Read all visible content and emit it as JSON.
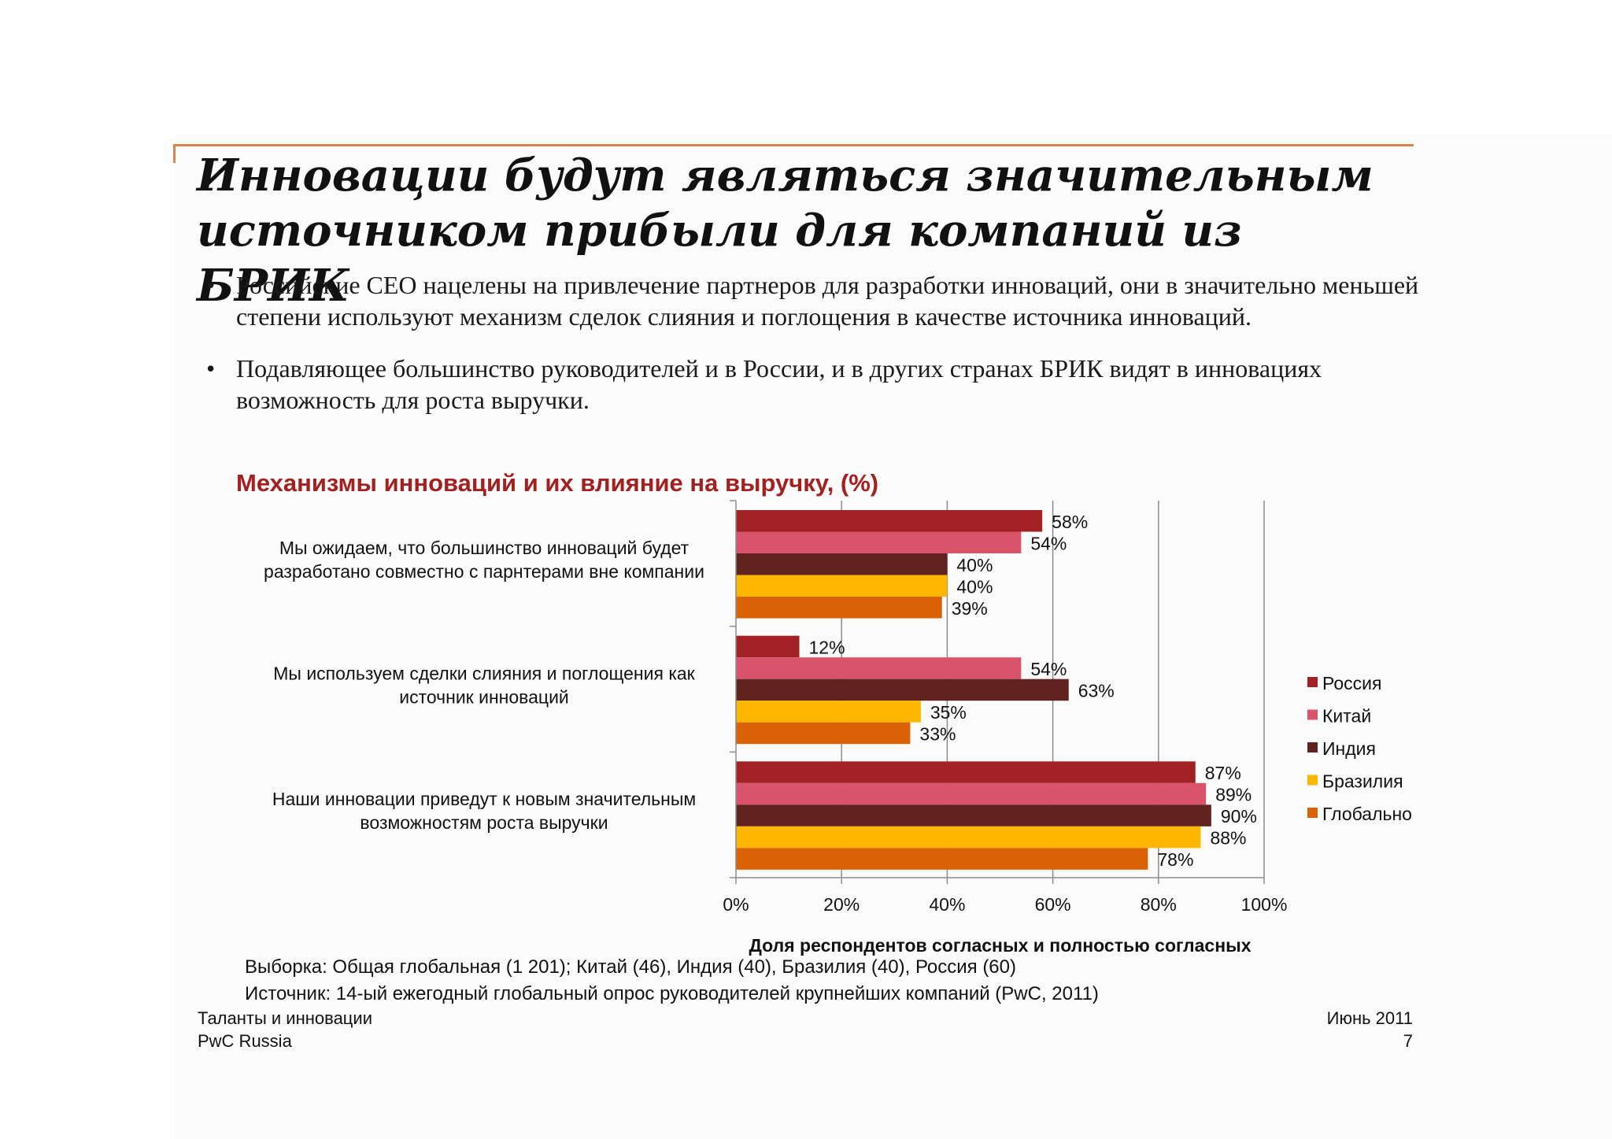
{
  "slide": {
    "title": "Инновации будут являться значительным источником прибыли для компаний из БРИК",
    "bullets": [
      "Российские СЕО нацелены на привлечение партнеров для разработки инноваций, они в значительно меньшей степени используют механизм сделок слияния и поглощения в качестве источника инноваций.",
      "Подавляющее большинство руководителей и в России, и в других странах БРИК видят в инновациях возможность для роста выручки."
    ],
    "sample_note": "Выборка: Общая глобальная (1 201); Китай (46),  Индия (40), Бразилия (40), Россия (60)",
    "source_note": "Источник: 14-ый ежегодный глобальный опрос руководителей крупнейших компаний (PwC, 2011)",
    "footer": {
      "left_line1": "Таланты и инновации",
      "left_line2": "PwC Russia",
      "right_line1": "Июнь 2011",
      "page_number": "7"
    }
  },
  "chart_data": {
    "type": "bar",
    "orientation": "horizontal",
    "title": "Механизмы инноваций и их влияние на выручку, (%)",
    "xlabel": "Доля респондентов согласных и полностью согласных",
    "ylabel": "",
    "xlim": [
      0,
      100
    ],
    "x_ticks": [
      "0%",
      "20%",
      "40%",
      "60%",
      "80%",
      "100%"
    ],
    "grid": "vertical",
    "legend_position": "right",
    "categories": [
      [
        "Мы ожидаем, что большинство инноваций будет",
        "разработано совместно с парнтерами вне компании"
      ],
      [
        "Мы используем сделки слияния и поглощения как",
        "источник инноваций"
      ],
      [
        "Наши инновации приведут к новым значительным",
        "возможностям роста выручки"
      ]
    ],
    "series": [
      {
        "name": "Россия",
        "color": "#a12124",
        "values": [
          58,
          12,
          87
        ]
      },
      {
        "name": "Китай",
        "color": "#d9546b",
        "values": [
          54,
          54,
          89
        ]
      },
      {
        "name": "Индия",
        "color": "#602320",
        "values": [
          40,
          63,
          90
        ]
      },
      {
        "name": "Бразилия",
        "color": "#fdb700",
        "values": [
          40,
          35,
          88
        ]
      },
      {
        "name": "Глобально",
        "color": "#db6204",
        "values": [
          39,
          33,
          78
        ]
      }
    ],
    "value_labels": [
      [
        "58%",
        "12%",
        "87%"
      ],
      [
        "54%",
        "54%",
        "89%"
      ],
      [
        "40%",
        "63%",
        "90%"
      ],
      [
        "40%",
        "35%",
        "88%"
      ],
      [
        "39%",
        "33%",
        "78%"
      ]
    ]
  }
}
